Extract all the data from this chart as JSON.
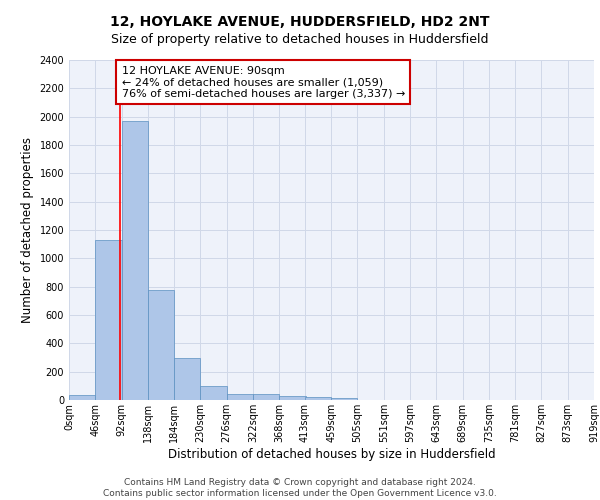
{
  "title_line1": "12, HOYLAKE AVENUE, HUDDERSFIELD, HD2 2NT",
  "title_line2": "Size of property relative to detached houses in Huddersfield",
  "xlabel": "Distribution of detached houses by size in Huddersfield",
  "ylabel": "Number of detached properties",
  "bar_values": [
    35,
    1130,
    1970,
    775,
    300,
    100,
    45,
    40,
    30,
    20,
    15,
    0,
    0,
    0,
    0,
    0,
    0,
    0,
    0,
    0
  ],
  "bin_edges": [
    0,
    46,
    92,
    138,
    184,
    230,
    276,
    322,
    368,
    413,
    459,
    505,
    551,
    597,
    643,
    689,
    735,
    781,
    827,
    873,
    919
  ],
  "tick_labels": [
    "0sqm",
    "46sqm",
    "92sqm",
    "138sqm",
    "184sqm",
    "230sqm",
    "276sqm",
    "322sqm",
    "368sqm",
    "413sqm",
    "459sqm",
    "505sqm",
    "551sqm",
    "597sqm",
    "643sqm",
    "689sqm",
    "735sqm",
    "781sqm",
    "827sqm",
    "873sqm",
    "919sqm"
  ],
  "bar_color": "#aec6e8",
  "bar_edge_color": "#5a8fc0",
  "grid_color": "#d0d8e8",
  "background_color": "#eef2fa",
  "annotation_box_color": "#cc0000",
  "red_line_x": 90,
  "annotation_text": "12 HOYLAKE AVENUE: 90sqm\n← 24% of detached houses are smaller (1,059)\n76% of semi-detached houses are larger (3,337) →",
  "footer_text": "Contains HM Land Registry data © Crown copyright and database right 2024.\nContains public sector information licensed under the Open Government Licence v3.0.",
  "ylim": [
    0,
    2400
  ],
  "yticks": [
    0,
    200,
    400,
    600,
    800,
    1000,
    1200,
    1400,
    1600,
    1800,
    2000,
    2200,
    2400
  ],
  "title_fontsize": 10,
  "subtitle_fontsize": 9,
  "axis_label_fontsize": 8.5,
  "tick_fontsize": 7,
  "annotation_fontsize": 8,
  "footer_fontsize": 6.5
}
